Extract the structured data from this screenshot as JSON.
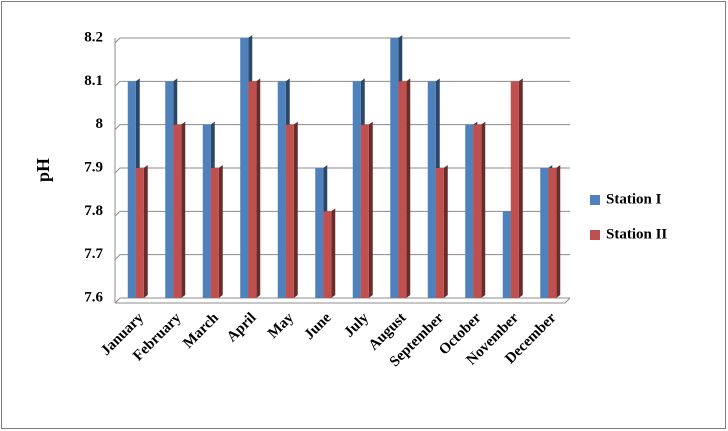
{
  "chart_data": {
    "type": "bar",
    "y_label": "pH",
    "categories": [
      "January",
      "February",
      "March",
      "April",
      "May",
      "June",
      "July",
      "August",
      "September",
      "October",
      "November",
      "December"
    ],
    "series": [
      {
        "name": "Station I",
        "color": "#4f81bd",
        "values": [
          8.1,
          8.1,
          8.0,
          8.2,
          8.1,
          7.9,
          8.1,
          8.2,
          8.1,
          8.0,
          7.8,
          7.9
        ]
      },
      {
        "name": "Station II",
        "color": "#c0504d",
        "values": [
          7.9,
          8.0,
          7.9,
          8.1,
          8.0,
          7.8,
          8.0,
          8.1,
          7.9,
          8.0,
          8.1,
          7.9
        ]
      }
    ],
    "ylim": [
      7.6,
      8.2
    ],
    "yticks": [
      7.6,
      7.7,
      7.8,
      7.9,
      8,
      8.1,
      8.2
    ],
    "grid": true,
    "legend": "right"
  }
}
